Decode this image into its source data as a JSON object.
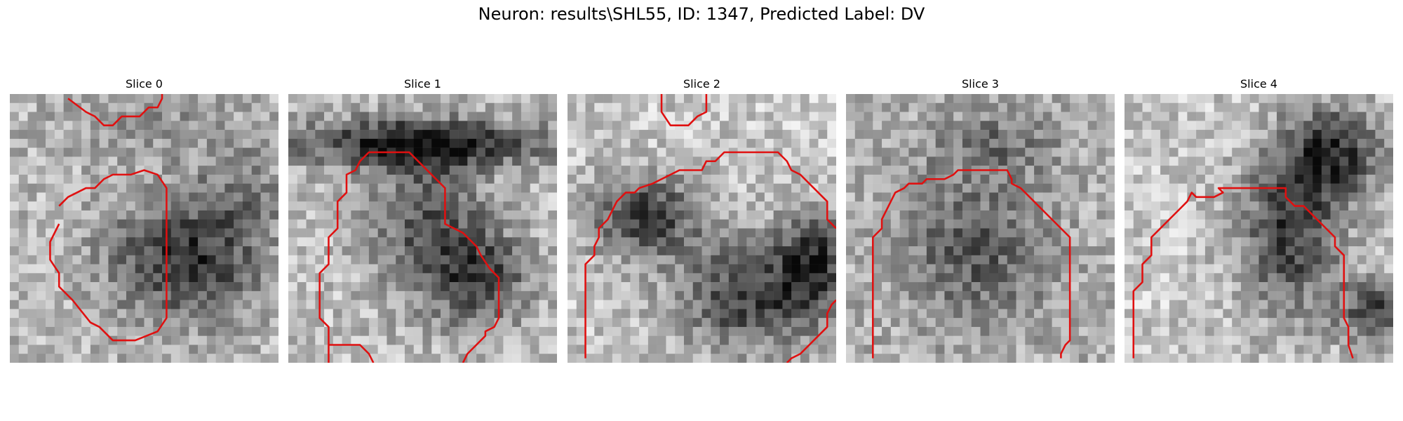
{
  "figure": {
    "title": "Neuron: results\\SHL55, ID: 1347, Predicted Label: DV",
    "contour_color": "#e01010"
  },
  "panels": [
    {
      "title": "Slice 0",
      "seed": 11,
      "dark_blobs": [
        {
          "cx": 19,
          "cy": 18,
          "rx": 9,
          "ry": 7,
          "d": 0.55
        },
        {
          "cx": 15,
          "cy": 3,
          "rx": 10,
          "ry": 4,
          "d": 0.15
        },
        {
          "cx": 25,
          "cy": 10,
          "rx": 6,
          "ry": 6,
          "d": 0.2
        }
      ],
      "base": 0.72,
      "contours": [
        [
          [
            5.5,
            12.5
          ],
          [
            6.5,
            11.5
          ],
          [
            8.5,
            10.5
          ],
          [
            9.5,
            10.5
          ],
          [
            10.5,
            9.5
          ],
          [
            11.5,
            9
          ],
          [
            13.5,
            9
          ],
          [
            15,
            8.5
          ],
          [
            16.5,
            9
          ],
          [
            17.5,
            10.5
          ],
          [
            17.5,
            13
          ],
          [
            17.5,
            25
          ],
          [
            16.5,
            26.5
          ],
          [
            14,
            27.5
          ],
          [
            11.5,
            27.5
          ],
          [
            10,
            26
          ],
          [
            9,
            25.5
          ],
          [
            7,
            23
          ],
          [
            5.5,
            21.5
          ],
          [
            5.5,
            20
          ],
          [
            4.5,
            18.5
          ],
          [
            4.5,
            16.5
          ],
          [
            5.5,
            14.5
          ]
        ],
        [
          [
            6.5,
            0.5
          ],
          [
            8.5,
            2
          ],
          [
            9.5,
            2.5
          ],
          [
            10.5,
            3.5
          ],
          [
            11.5,
            3.5
          ],
          [
            12.5,
            2.5
          ],
          [
            14.5,
            2.5
          ],
          [
            15.5,
            1.5
          ],
          [
            16.5,
            1.5
          ],
          [
            17,
            0.5
          ],
          [
            17,
            0
          ]
        ]
      ]
    },
    {
      "title": "Slice 1",
      "seed": 23,
      "dark_blobs": [
        {
          "cx": 14,
          "cy": 5,
          "rx": 16,
          "ry": 3,
          "d": 0.65
        },
        {
          "cx": 15,
          "cy": 14,
          "rx": 7,
          "ry": 9,
          "d": 0.4
        },
        {
          "cx": 21,
          "cy": 20,
          "rx": 6,
          "ry": 6,
          "d": 0.45
        }
      ],
      "base": 0.75,
      "contours": [
        [
          [
            4.5,
            30
          ],
          [
            4.5,
            26
          ],
          [
            3.5,
            25
          ],
          [
            3.5,
            20
          ],
          [
            4.5,
            19
          ],
          [
            4.5,
            16
          ],
          [
            5.5,
            15
          ],
          [
            5.5,
            12
          ],
          [
            6.5,
            11
          ],
          [
            6.5,
            9
          ],
          [
            7.5,
            8.5
          ],
          [
            8,
            7.5
          ],
          [
            9,
            6.5
          ],
          [
            13.5,
            6.5
          ],
          [
            15.5,
            8.5
          ],
          [
            16.5,
            9.5
          ],
          [
            17.5,
            10.5
          ],
          [
            17.5,
            14.5
          ],
          [
            18.5,
            15
          ],
          [
            19.5,
            15.5
          ],
          [
            20,
            16
          ],
          [
            21,
            17
          ],
          [
            21.5,
            18
          ],
          [
            22.5,
            19.5
          ],
          [
            23.5,
            20.5
          ],
          [
            23.5,
            25
          ],
          [
            23,
            26
          ],
          [
            22,
            26.5
          ],
          [
            22,
            27
          ],
          [
            21,
            28
          ],
          [
            20,
            29
          ],
          [
            19.5,
            30
          ]
        ],
        [
          [
            4.5,
            28
          ],
          [
            8,
            28
          ],
          [
            9,
            29
          ],
          [
            9.5,
            30
          ]
        ]
      ]
    },
    {
      "title": "Slice 2",
      "seed": 37,
      "dark_blobs": [
        {
          "cx": 8,
          "cy": 13,
          "rx": 7,
          "ry": 5,
          "d": 0.55
        },
        {
          "cx": 20,
          "cy": 22,
          "rx": 9,
          "ry": 7,
          "d": 0.55
        },
        {
          "cx": 27,
          "cy": 18,
          "rx": 4,
          "ry": 6,
          "d": 0.5
        }
      ],
      "base": 0.78,
      "contours": [
        [
          [
            2,
            29.5
          ],
          [
            2,
            19
          ],
          [
            3,
            18
          ],
          [
            3,
            17
          ],
          [
            3.5,
            16
          ],
          [
            3.5,
            15
          ],
          [
            4.5,
            14
          ],
          [
            5,
            13
          ],
          [
            5.5,
            12
          ],
          [
            6.5,
            11
          ],
          [
            7.5,
            11
          ],
          [
            8,
            10.5
          ],
          [
            9.5,
            10
          ],
          [
            10.5,
            9.5
          ],
          [
            11.5,
            9
          ],
          [
            12.5,
            8.5
          ],
          [
            15,
            8.5
          ],
          [
            15.5,
            7.5
          ],
          [
            16.5,
            7.5
          ],
          [
            17.5,
            6.5
          ],
          [
            23.5,
            6.5
          ],
          [
            24.5,
            7.5
          ],
          [
            25,
            8.5
          ],
          [
            26,
            9
          ],
          [
            27,
            10
          ],
          [
            28,
            11
          ],
          [
            29,
            12
          ],
          [
            29,
            14
          ],
          [
            30,
            15
          ]
        ],
        [
          [
            10.5,
            0
          ],
          [
            10.5,
            2
          ],
          [
            11.5,
            3.5
          ],
          [
            13.5,
            3.5
          ],
          [
            14.5,
            2.5
          ],
          [
            15.5,
            2
          ],
          [
            15.5,
            0
          ]
        ],
        [
          [
            30,
            23
          ],
          [
            29.5,
            23.5
          ],
          [
            29,
            24.5
          ],
          [
            29,
            26
          ],
          [
            28,
            27
          ],
          [
            27,
            28
          ],
          [
            26,
            29
          ],
          [
            25,
            29.5
          ],
          [
            24.5,
            30
          ]
        ]
      ]
    },
    {
      "title": "Slice 3",
      "seed": 53,
      "dark_blobs": [
        {
          "cx": 14,
          "cy": 17,
          "rx": 9,
          "ry": 9,
          "d": 0.35
        },
        {
          "cx": 16,
          "cy": 5,
          "rx": 8,
          "ry": 4,
          "d": 0.25
        }
      ],
      "base": 0.7,
      "contours": [
        [
          [
            3,
            29.5
          ],
          [
            3,
            16
          ],
          [
            4,
            15
          ],
          [
            4,
            14
          ],
          [
            4.5,
            13
          ],
          [
            5,
            12
          ],
          [
            5.5,
            11
          ],
          [
            6.5,
            10.5
          ],
          [
            7,
            10
          ],
          [
            8.5,
            10
          ],
          [
            9,
            9.5
          ],
          [
            11,
            9.5
          ],
          [
            12,
            9
          ],
          [
            12.5,
            8.5
          ],
          [
            13,
            8.5
          ],
          [
            18,
            8.5
          ],
          [
            18.5,
            9.5
          ],
          [
            18.5,
            10
          ],
          [
            19.5,
            10.5
          ],
          [
            20,
            11
          ],
          [
            21,
            12
          ],
          [
            22,
            13
          ],
          [
            23,
            14
          ],
          [
            24,
            15
          ],
          [
            25,
            16
          ],
          [
            25,
            27.5
          ],
          [
            24.5,
            28
          ],
          [
            24,
            29
          ],
          [
            24,
            29.5
          ]
        ]
      ]
    },
    {
      "title": "Slice 4",
      "seed": 71,
      "dark_blobs": [
        {
          "cx": 18,
          "cy": 15,
          "rx": 6,
          "ry": 10,
          "d": 0.55
        },
        {
          "cx": 23,
          "cy": 6,
          "rx": 6,
          "ry": 6,
          "d": 0.55
        },
        {
          "cx": 28,
          "cy": 24,
          "rx": 5,
          "ry": 4,
          "d": 0.5
        }
      ],
      "base": 0.78,
      "contours": [
        [
          [
            1,
            29.5
          ],
          [
            1,
            22
          ],
          [
            2,
            21
          ],
          [
            2,
            19
          ],
          [
            3,
            18
          ],
          [
            3,
            16
          ],
          [
            4,
            15
          ],
          [
            5,
            14
          ],
          [
            6,
            13
          ],
          [
            7,
            12
          ],
          [
            7.5,
            11
          ],
          [
            8,
            11.5
          ],
          [
            10,
            11.5
          ],
          [
            11,
            11
          ],
          [
            10.5,
            10.5
          ],
          [
            18,
            10.5
          ],
          [
            18,
            11.5
          ],
          [
            19,
            12.5
          ],
          [
            20,
            12.5
          ],
          [
            21,
            13.5
          ],
          [
            22,
            14.5
          ],
          [
            23,
            15.5
          ],
          [
            23.5,
            16
          ],
          [
            23.5,
            17
          ],
          [
            24.5,
            18
          ],
          [
            24.5,
            25
          ],
          [
            25,
            26
          ],
          [
            25,
            28
          ],
          [
            25.5,
            29.5
          ]
        ]
      ]
    }
  ]
}
